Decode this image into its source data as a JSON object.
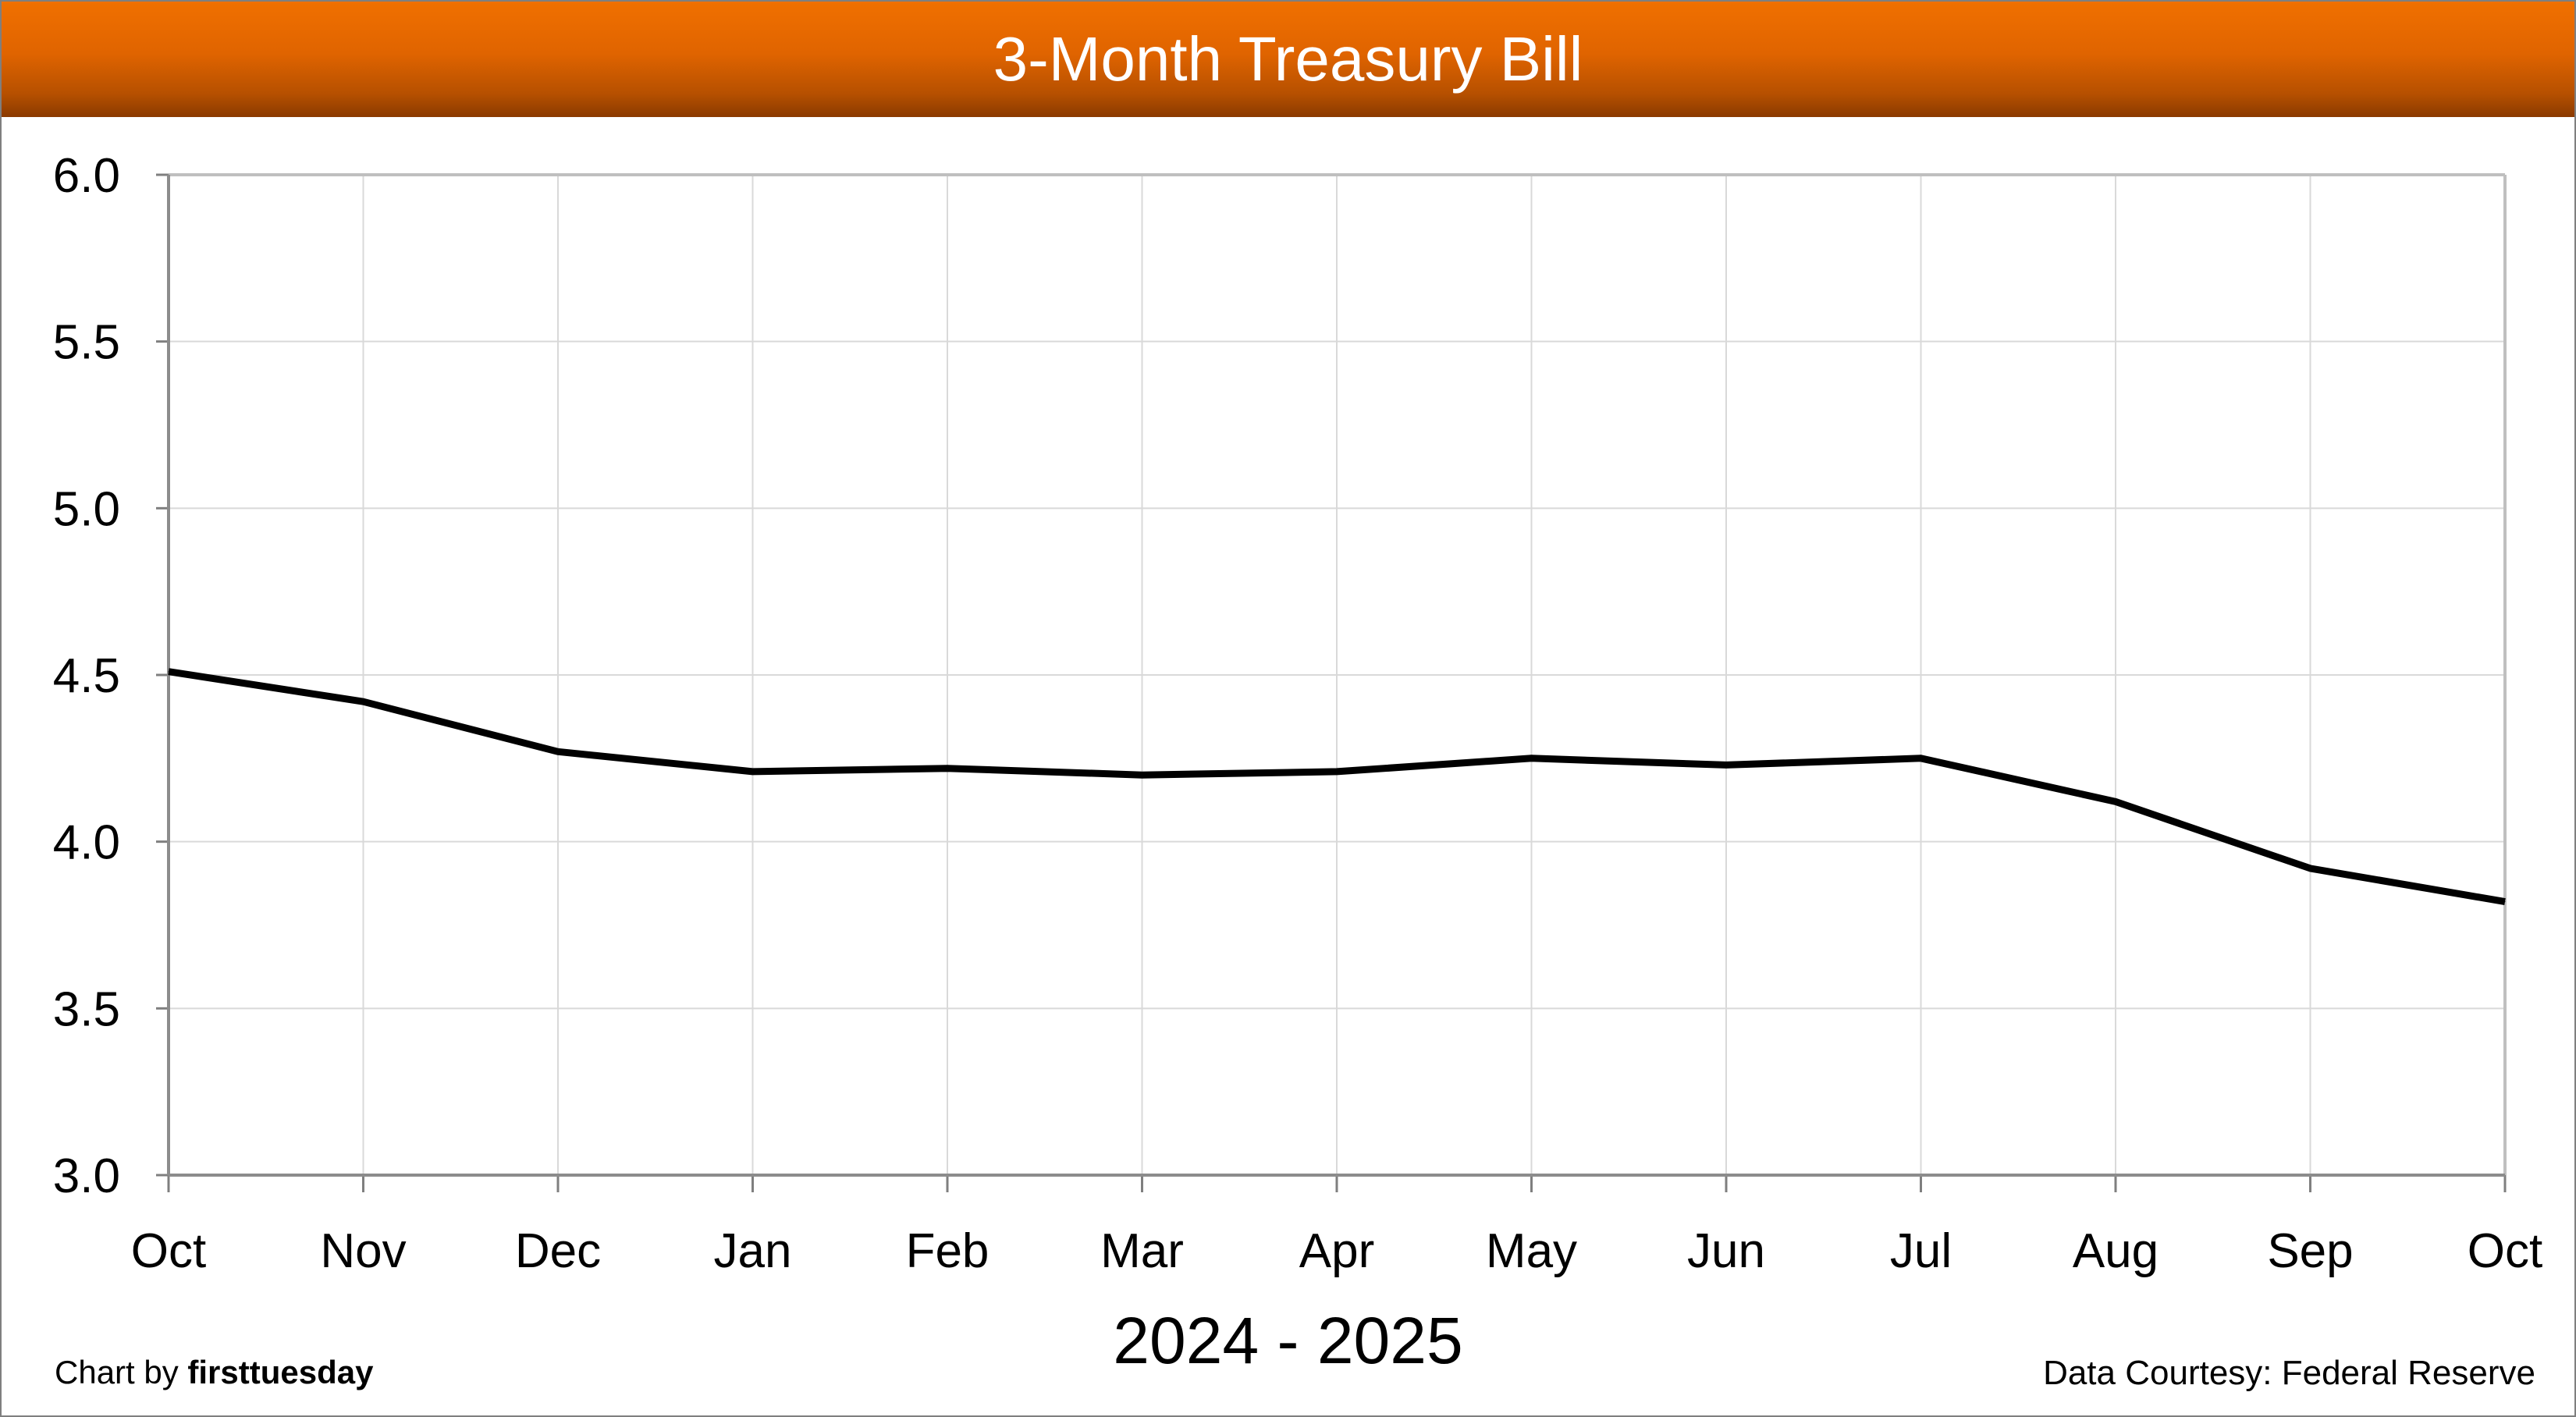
{
  "header": {
    "title": "3-Month Treasury Bill"
  },
  "footer": {
    "chart_by_prefix": "Chart by ",
    "chart_by_brand": "firsttuesday",
    "source": "Data Courtesy: Federal Reserve"
  },
  "chart_data": {
    "type": "line",
    "title": "3-Month Treasury Bill",
    "xlabel": "2024 - 2025",
    "ylabel": "",
    "categories": [
      "Oct",
      "Nov",
      "Dec",
      "Jan",
      "Feb",
      "Mar",
      "Apr",
      "May",
      "Jun",
      "Jul",
      "Aug",
      "Sep",
      "Oct"
    ],
    "series": [
      {
        "values": [
          4.51,
          4.42,
          4.27,
          4.21,
          4.22,
          4.2,
          4.21,
          4.25,
          4.23,
          4.25,
          4.12,
          3.92,
          3.82
        ]
      }
    ],
    "ylim": [
      3.0,
      6.0
    ],
    "yticks": [
      "3.0",
      "3.5",
      "4.0",
      "4.5",
      "5.0",
      "5.5",
      "6.0"
    ],
    "grid": true,
    "line_color": "#000000",
    "header_color": "#e06400"
  }
}
